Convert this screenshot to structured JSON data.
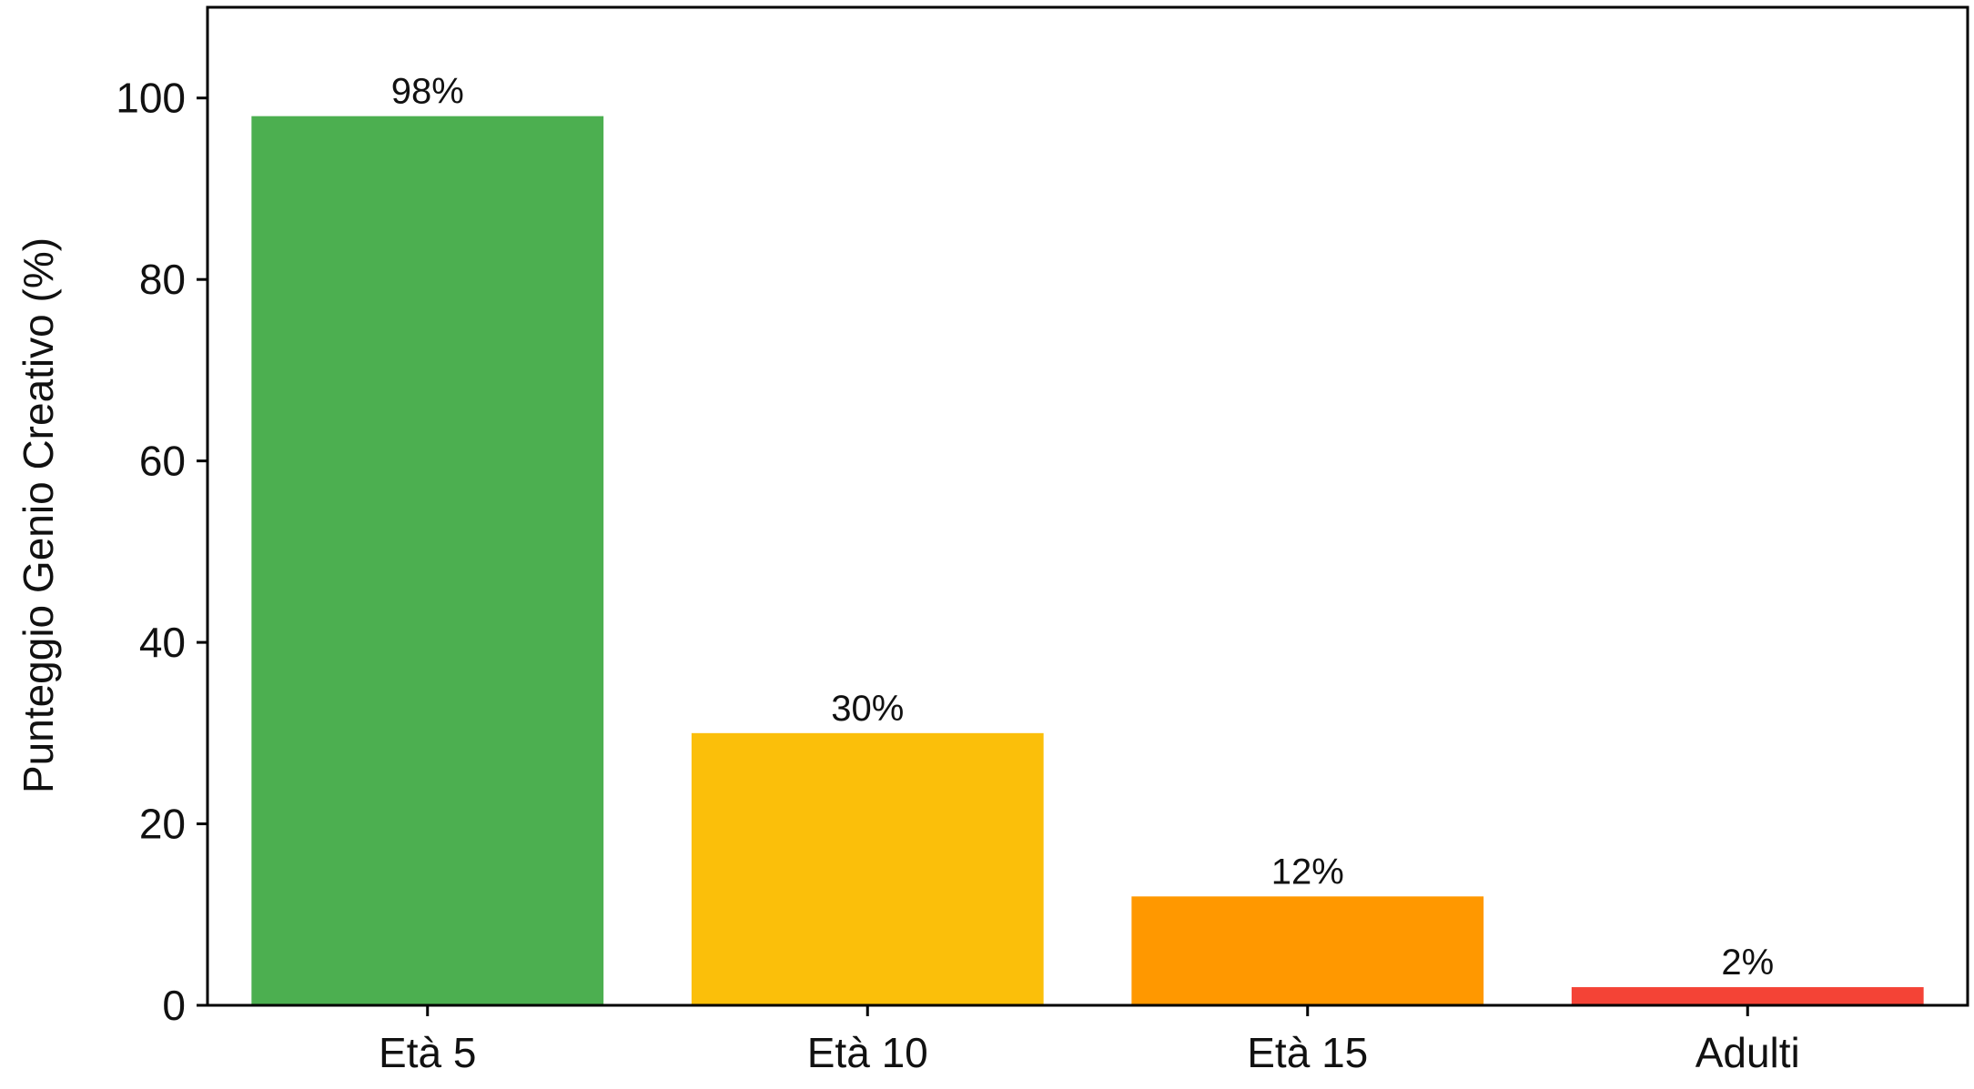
{
  "chart_data": {
    "type": "bar",
    "title": "",
    "xlabel": "",
    "ylabel": "Punteggio Genio Creativo (%)",
    "categories": [
      "Età 5",
      "Età 10",
      "Età 15",
      "Adulti"
    ],
    "values": [
      98,
      30,
      12,
      2
    ],
    "data_labels": [
      "98%",
      "30%",
      "12%",
      "2%"
    ],
    "bar_colors": [
      "#4caf50",
      "#fbbf0a",
      "#ff9800",
      "#f44336"
    ],
    "ylim": [
      0,
      110
    ],
    "yticks": [
      0,
      20,
      40,
      60,
      80,
      100
    ],
    "grid": false,
    "legend": "none"
  }
}
